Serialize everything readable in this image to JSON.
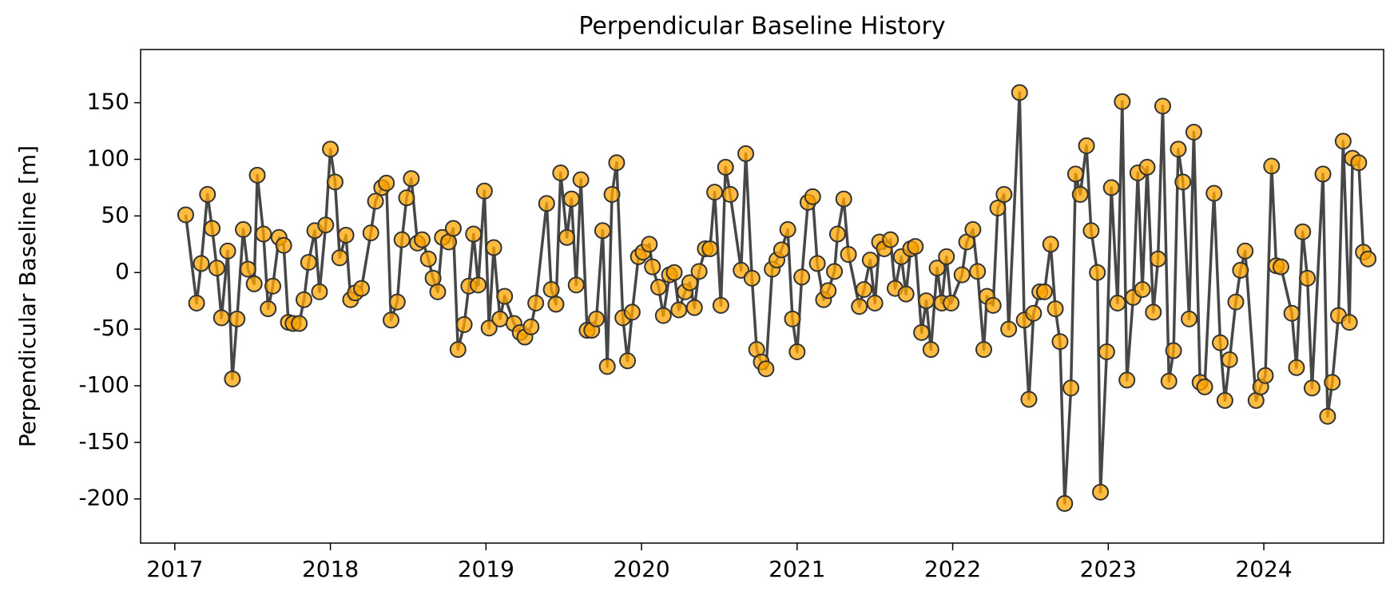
{
  "chart_data": {
    "type": "line",
    "title": "Perpendicular Baseline History",
    "y_label": "Perpendicular Baseline [m]",
    "x": [
      2017.07,
      2017.14,
      2017.17,
      2017.21,
      2017.24,
      2017.27,
      2017.3,
      2017.34,
      2017.37,
      2017.4,
      2017.44,
      2017.47,
      2017.51,
      2017.53,
      2017.57,
      2017.6,
      2017.63,
      2017.67,
      2017.7,
      2017.73,
      2017.76,
      2017.8,
      2017.83,
      2017.86,
      2017.9,
      2017.93,
      2017.97,
      2018.0,
      2018.03,
      2018.06,
      2018.1,
      2018.13,
      2018.16,
      2018.2,
      2018.26,
      2018.29,
      2018.33,
      2018.36,
      2018.39,
      2018.43,
      2018.46,
      2018.49,
      2018.52,
      2018.56,
      2018.59,
      2018.63,
      2018.66,
      2018.69,
      2018.72,
      2018.76,
      2018.79,
      2018.82,
      2018.86,
      2018.89,
      2018.92,
      2018.95,
      2018.99,
      2019.02,
      2019.05,
      2019.09,
      2019.12,
      2019.18,
      2019.22,
      2019.25,
      2019.29,
      2019.32,
      2019.39,
      2019.42,
      2019.45,
      2019.48,
      2019.52,
      2019.55,
      2019.58,
      2019.61,
      2019.65,
      2019.68,
      2019.71,
      2019.75,
      2019.78,
      2019.81,
      2019.84,
      2019.88,
      2019.91,
      2019.94,
      2019.98,
      2020.01,
      2020.05,
      2020.07,
      2020.11,
      2020.14,
      2020.18,
      2020.21,
      2020.24,
      2020.28,
      2020.31,
      2020.34,
      2020.37,
      2020.41,
      2020.44,
      2020.47,
      2020.51,
      2020.54,
      2020.57,
      2020.64,
      2020.67,
      2020.71,
      2020.74,
      2020.77,
      2020.8,
      2020.84,
      2020.87,
      2020.9,
      2020.94,
      2020.97,
      2021.0,
      2021.03,
      2021.07,
      2021.1,
      2021.13,
      2021.17,
      2021.2,
      2021.24,
      2021.26,
      2021.3,
      2021.33,
      2021.4,
      2021.43,
      2021.47,
      2021.5,
      2021.53,
      2021.56,
      2021.6,
      2021.63,
      2021.67,
      2021.7,
      2021.73,
      2021.76,
      2021.8,
      2021.83,
      2021.86,
      2021.9,
      2021.93,
      2021.96,
      2021.99,
      2022.06,
      2022.09,
      2022.13,
      2022.16,
      2022.2,
      2022.22,
      2022.26,
      2022.29,
      2022.33,
      2022.36,
      2022.43,
      2022.46,
      2022.49,
      2022.52,
      2022.56,
      2022.59,
      2022.63,
      2022.66,
      2022.69,
      2022.72,
      2022.76,
      2022.79,
      2022.82,
      2022.86,
      2022.89,
      2022.93,
      2022.95,
      2022.99,
      2023.02,
      2023.06,
      2023.09,
      2023.12,
      2023.16,
      2023.19,
      2023.22,
      2023.25,
      2023.29,
      2023.32,
      2023.35,
      2023.39,
      2023.42,
      2023.45,
      2023.48,
      2023.52,
      2023.55,
      2023.59,
      2023.62,
      2023.68,
      2023.72,
      2023.75,
      2023.78,
      2023.82,
      2023.85,
      2023.88,
      2023.95,
      2023.98,
      2024.01,
      2024.05,
      2024.08,
      2024.11,
      2024.18,
      2024.21,
      2024.25,
      2024.28,
      2024.31,
      2024.38,
      2024.41,
      2024.44,
      2024.48,
      2024.51,
      2024.55,
      2024.57,
      2024.61,
      2024.64,
      2024.67
    ],
    "values": [
      51,
      -27,
      8,
      69,
      39,
      4,
      -40,
      19,
      -94,
      -41,
      38,
      3,
      -10,
      86,
      34,
      -32,
      -12,
      31,
      24,
      -44,
      -45,
      -45,
      -24,
      9,
      37,
      -17,
      42,
      109,
      80,
      13,
      33,
      -24,
      -18,
      -14,
      35,
      63,
      75,
      79,
      -42,
      -26,
      29,
      66,
      83,
      26,
      29,
      12,
      -5,
      -17,
      31,
      27,
      39,
      -68,
      -46,
      -12,
      34,
      -11,
      72,
      -49,
      22,
      -41,
      -21,
      -45,
      -53,
      -57,
      -48,
      -27,
      61,
      -15,
      -28,
      88,
      31,
      65,
      -11,
      82,
      -51,
      -51,
      -41,
      37,
      -83,
      69,
      97,
      -40,
      -78,
      -35,
      14,
      18,
      25,
      5,
      -13,
      -38,
      -2,
      0,
      -33,
      -17,
      -9,
      -31,
      1,
      21,
      21,
      71,
      -29,
      93,
      69,
      2,
      105,
      -5,
      -68,
      -79,
      -85,
      3,
      11,
      20,
      38,
      -41,
      -70,
      -4,
      62,
      67,
      8,
      -24,
      -16,
      1,
      34,
      65,
      16,
      -30,
      -15,
      11,
      -27,
      27,
      21,
      29,
      -14,
      14,
      -19,
      21,
      23,
      -53,
      -25,
      -68,
      4,
      -27,
      14,
      -27,
      -2,
      27,
      38,
      1,
      -68,
      -21,
      -29,
      57,
      69,
      -50,
      159,
      -42,
      -112,
      -36,
      -17,
      -17,
      25,
      -32,
      -61,
      -204,
      -102,
      87,
      69,
      112,
      37,
      0,
      -194,
      -70,
      75,
      -27,
      151,
      -95,
      -22,
      88,
      -15,
      93,
      -35,
      12,
      147,
      -96,
      -69,
      109,
      80,
      -41,
      124,
      -97,
      -101,
      70,
      -62,
      -113,
      -77,
      -26,
      2,
      19,
      -113,
      -101,
      -91,
      94,
      6,
      5,
      -36,
      -84,
      36,
      -5,
      -102,
      87,
      -127,
      -97,
      -38,
      116,
      -44,
      101,
      97,
      18,
      12
    ],
    "marker_color": "#ffa500",
    "line_color": "#333333",
    "xlim": [
      2016.78,
      2024.77
    ],
    "xticks": [
      2017,
      2018,
      2019,
      2020,
      2021,
      2022,
      2023,
      2024
    ],
    "ylim": [
      -239,
      197
    ],
    "yticks": [
      -200,
      -150,
      -100,
      -50,
      0,
      50,
      100,
      150
    ]
  }
}
